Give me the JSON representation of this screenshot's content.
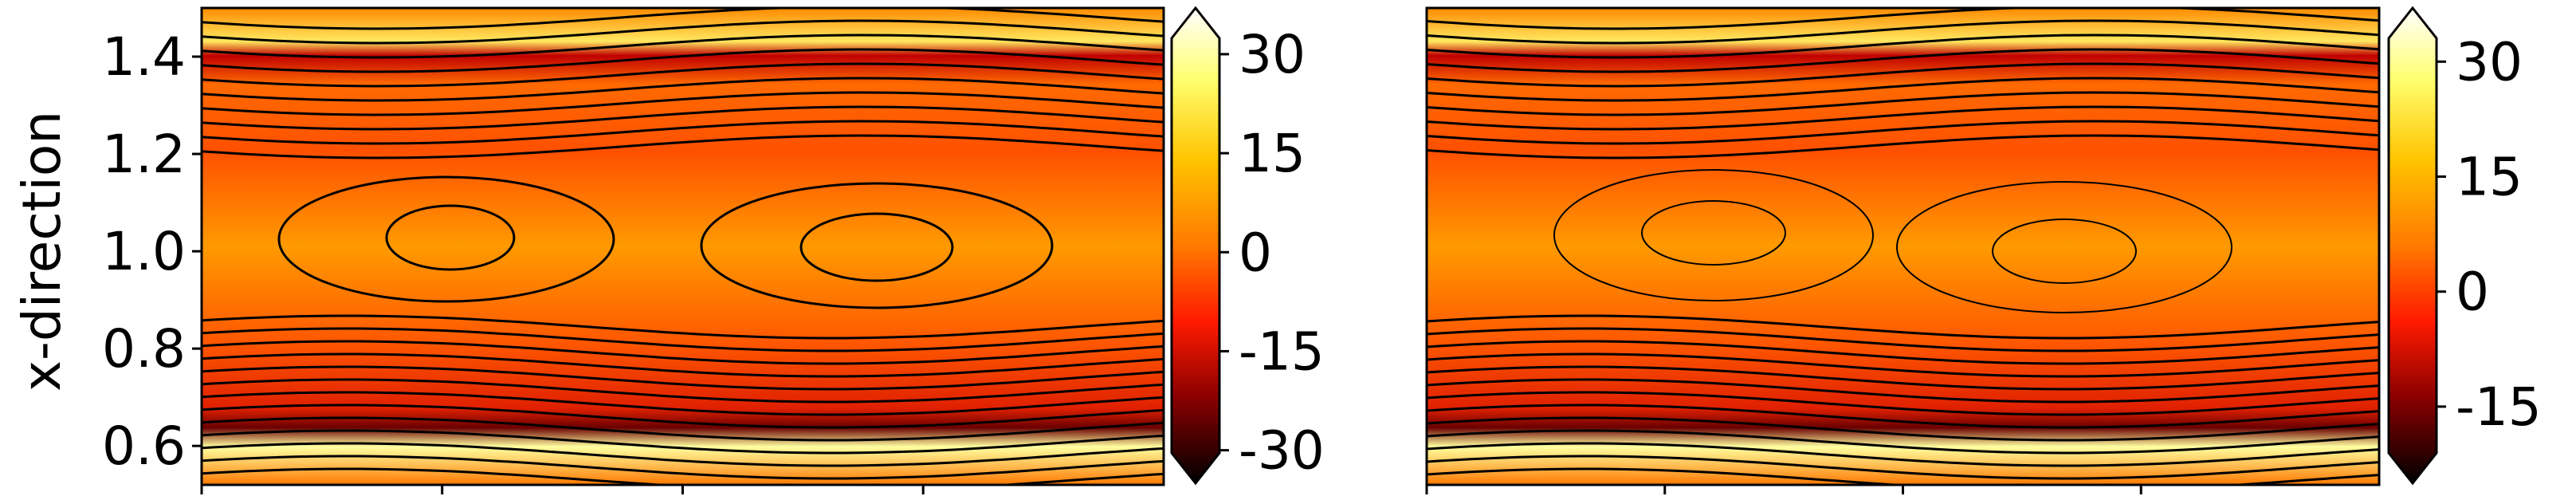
{
  "figure": {
    "ylabel": "x-direction"
  },
  "colors": {
    "colormap": [
      "#000000",
      "#7a0000",
      "#e00000",
      "#ff6400",
      "#ffa000",
      "#ffe000",
      "#ffff80",
      "#ffffff"
    ],
    "streamline": "#000000"
  },
  "chart_data": [
    {
      "type": "heatmap",
      "panel": "left",
      "ylabel": "x-direction",
      "ylim": [
        0.52,
        1.5
      ],
      "yticks": [
        0.6,
        0.8,
        1.0,
        1.2,
        1.4
      ],
      "ytick_labels": [
        "0.6",
        "0.8",
        "1.0",
        "1.2",
        "1.4"
      ],
      "xticks_count": 4,
      "grid": false,
      "overlay": "closed streamlines (two cat's-eye vortices centered near x-direction = 1.0)",
      "colorbar": {
        "ticks": [
          30,
          15,
          0,
          -15,
          -30
        ],
        "tick_labels": [
          "30",
          "15",
          "0",
          "-15",
          "-30"
        ],
        "range": [
          -35,
          37
        ],
        "extend": "both"
      }
    },
    {
      "type": "heatmap",
      "panel": "right",
      "ylim": [
        0.52,
        1.5
      ],
      "xticks_count": 4,
      "grid": false,
      "overlay": "directional streamlines with arrows (flow leftward at top, rightward at bottom, two vortices near x-direction = 1.0)",
      "colorbar": {
        "ticks": [
          30,
          15,
          0,
          -15
        ],
        "tick_labels": [
          "30",
          "15",
          "0",
          "-15"
        ],
        "range": [
          -25,
          37
        ],
        "extend": "both"
      }
    }
  ]
}
